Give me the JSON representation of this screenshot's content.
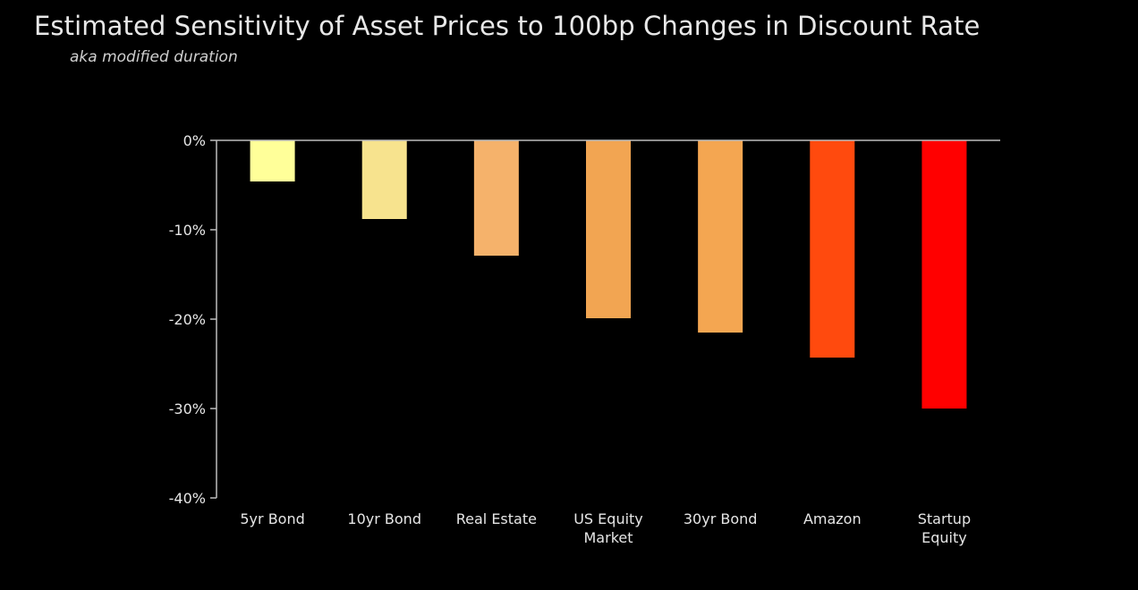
{
  "title": "Estimated Sensitivity of Asset Prices to 100bp Changes in Discount Rate",
  "subtitle": "aka modified duration",
  "chart_data": {
    "type": "bar",
    "title": "Estimated Sensitivity of Asset Prices to 100bp Changes in Discount Rate",
    "subtitle": "aka modified duration",
    "xlabel": "",
    "ylabel": "",
    "ylim": [
      -40,
      0
    ],
    "yticks": [
      0,
      -10,
      -20,
      -30,
      -40
    ],
    "ytick_labels": [
      "0%",
      "-10%",
      "-20%",
      "-30%",
      "-40%"
    ],
    "grid": false,
    "categories": [
      [
        "5yr Bond"
      ],
      [
        "10yr Bond"
      ],
      [
        "Real Estate"
      ],
      [
        "US Equity",
        "Market"
      ],
      [
        "30yr Bond"
      ],
      [
        "Amazon"
      ],
      [
        "Startup",
        "Equity"
      ]
    ],
    "values": [
      -4.6,
      -8.8,
      -12.9,
      -19.9,
      -21.5,
      -24.3,
      -30.0
    ],
    "colors": [
      "#FFFF99",
      "#F7E38E",
      "#F5B26B",
      "#F2A552",
      "#F4A651",
      "#FF4A0E",
      "#FF0000"
    ]
  }
}
